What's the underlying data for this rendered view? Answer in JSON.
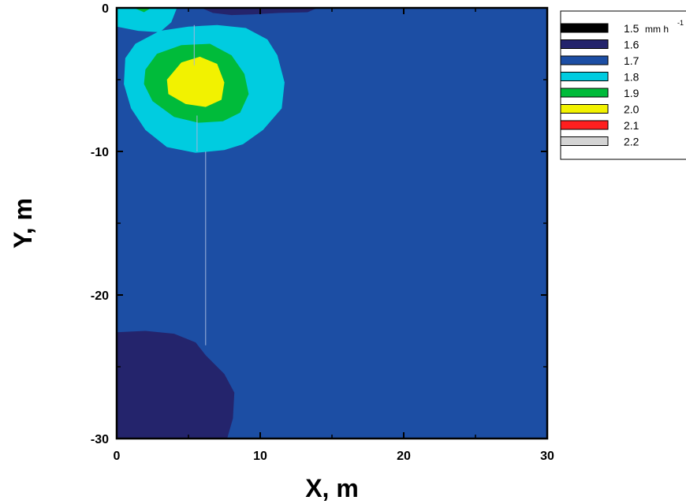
{
  "chart_data": {
    "type": "heatmap",
    "subtype": "filled-contour",
    "xlabel": "X, m",
    "ylabel": "Y, m",
    "xlim": [
      0,
      30
    ],
    "ylim": [
      -30,
      0
    ],
    "x_ticks": [
      "0",
      "10",
      "20",
      "30"
    ],
    "y_ticks": [
      "0",
      "-10",
      "-20",
      "-30"
    ],
    "legend_position": "right",
    "legend_unit": "mm h",
    "legend_unit_exponent": "-1",
    "levels": [
      {
        "value": 1.5,
        "label": "1.5",
        "color": "#000000"
      },
      {
        "value": 1.6,
        "label": "1.6",
        "color": "#24246c"
      },
      {
        "value": 1.7,
        "label": "1.7",
        "color": "#1c4ea4"
      },
      {
        "value": 1.8,
        "label": "1.8",
        "color": "#00cce0"
      },
      {
        "value": 1.9,
        "label": "1.9",
        "color": "#00bb3a"
      },
      {
        "value": 2.0,
        "label": "2.0",
        "color": "#f2f200"
      },
      {
        "value": 2.1,
        "label": "2.1",
        "color": "#ff1f1f"
      },
      {
        "value": 2.2,
        "label": "2.2",
        "color": "#d4d4d4"
      }
    ],
    "background_level": 1.7,
    "regions": [
      {
        "level": 1.6,
        "points": [
          [
            0,
            -22.6
          ],
          [
            2,
            -22.5
          ],
          [
            4,
            -22.7
          ],
          [
            5.5,
            -23.3
          ],
          [
            6.2,
            -24.2
          ],
          [
            7.5,
            -25.5
          ],
          [
            8.2,
            -26.8
          ],
          [
            8.1,
            -28.6
          ],
          [
            7.7,
            -30
          ],
          [
            0,
            -30
          ]
        ]
      },
      {
        "level": 1.6,
        "points": [
          [
            5.9,
            0
          ],
          [
            14.0,
            0
          ],
          [
            13.3,
            -0.3
          ],
          [
            11.3,
            -0.35
          ],
          [
            9.5,
            -0.45
          ],
          [
            8.0,
            -0.5
          ],
          [
            6.7,
            -0.35
          ]
        ]
      },
      {
        "level": 1.8,
        "points": [
          [
            0,
            0
          ],
          [
            4.2,
            0
          ],
          [
            3.8,
            -1.0
          ],
          [
            3.0,
            -1.7
          ],
          [
            1.5,
            -1.6
          ],
          [
            0,
            -1.3
          ]
        ]
      },
      {
        "level": 1.8,
        "points": [
          [
            1.3,
            -2.5
          ],
          [
            3,
            -1.6
          ],
          [
            5,
            -1.3
          ],
          [
            7,
            -1.2
          ],
          [
            9,
            -1.4
          ],
          [
            10.5,
            -2.2
          ],
          [
            11.2,
            -3.3
          ],
          [
            11.7,
            -5.2
          ],
          [
            11.5,
            -7.0
          ],
          [
            10.2,
            -8.5
          ],
          [
            8.8,
            -9.5
          ],
          [
            7.5,
            -9.9
          ],
          [
            5.5,
            -10.1
          ],
          [
            3.5,
            -9.7
          ],
          [
            2.0,
            -8.5
          ],
          [
            1.0,
            -7.0
          ],
          [
            0.5,
            -5.3
          ],
          [
            0.6,
            -3.5
          ]
        ]
      },
      {
        "level": 1.9,
        "points": [
          [
            2,
            -4.3
          ],
          [
            2.8,
            -3.2
          ],
          [
            4.5,
            -2.6
          ],
          [
            6.5,
            -2.5
          ],
          [
            8,
            -3.3
          ],
          [
            8.9,
            -4.6
          ],
          [
            9.2,
            -6.0
          ],
          [
            8.6,
            -7.3
          ],
          [
            7.4,
            -7.9
          ],
          [
            5.7,
            -8.0
          ],
          [
            4.0,
            -7.6
          ],
          [
            2.5,
            -6.5
          ],
          [
            1.9,
            -5.3
          ]
        ]
      },
      {
        "level": 1.9,
        "points": [
          [
            1.2,
            0
          ],
          [
            2.4,
            0
          ],
          [
            1.9,
            -0.3
          ]
        ]
      },
      {
        "level": 2.0,
        "points": [
          [
            3.5,
            -5.0
          ],
          [
            4.5,
            -3.8
          ],
          [
            5.8,
            -3.4
          ],
          [
            7.0,
            -3.9
          ],
          [
            7.5,
            -5.2
          ],
          [
            7.3,
            -6.4
          ],
          [
            6.2,
            -6.9
          ],
          [
            4.8,
            -6.7
          ],
          [
            3.6,
            -6.0
          ]
        ]
      }
    ],
    "gridlines": [
      {
        "points": [
          [
            5.4,
            -1.2
          ],
          [
            5.4,
            -4.0
          ]
        ]
      },
      {
        "points": [
          [
            5.6,
            -7.5
          ],
          [
            5.6,
            -10.0
          ]
        ]
      },
      {
        "points": [
          [
            6.2,
            -10.0
          ],
          [
            6.2,
            -23.5
          ]
        ]
      }
    ]
  }
}
